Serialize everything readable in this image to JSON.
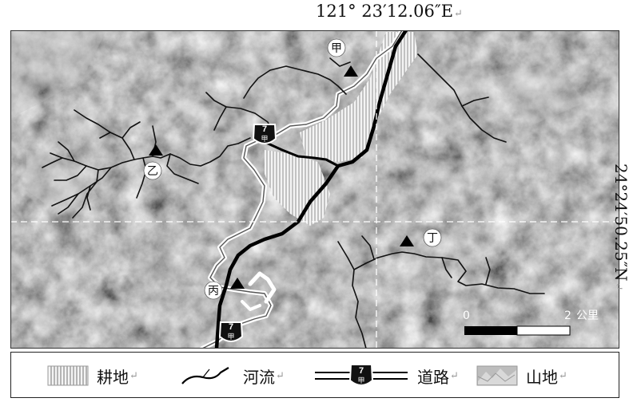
{
  "coords": {
    "longitude": "121° 23′12.06″E",
    "latitude": "24°24′50.25″N"
  },
  "places": [
    {
      "id": "jia",
      "label": "甲"
    },
    {
      "id": "yi",
      "label": "乙"
    },
    {
      "id": "bing",
      "label": "丙"
    },
    {
      "id": "ding",
      "label": "丁"
    }
  ],
  "road_shield": {
    "number": "7",
    "suffix": "甲"
  },
  "scale": {
    "start": "0",
    "end": "2",
    "unit": "公里"
  },
  "legend": [
    {
      "id": "farmland",
      "label": "耕地"
    },
    {
      "id": "river",
      "label": "河流"
    },
    {
      "id": "road",
      "label": "道路"
    },
    {
      "id": "mountain",
      "label": "山地"
    }
  ],
  "colors": {
    "terrain_base": "#8a8a8a",
    "road": "#000000",
    "river": "#ffffff",
    "farmland": "#f2f2f2",
    "grid_line": "#ffffff"
  }
}
